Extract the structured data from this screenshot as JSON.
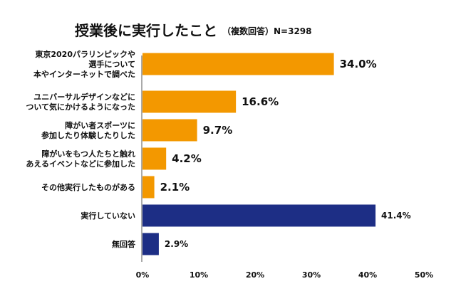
{
  "chart_data": {
    "type": "bar",
    "orientation": "horizontal",
    "title": "授業後に実行したこと",
    "subtitle": "（複数回答）N=3298",
    "categories": [
      [
        "東京2020パラリンピックや",
        "選手について",
        "本やインターネットで調べた"
      ],
      [
        "ユニバーサルデザインなどに",
        "ついて気にかけるようになった"
      ],
      [
        "障がい者スポーツに",
        "参加したり体験したりした"
      ],
      [
        "障がいをもつ人たちと触れ",
        "あえるイベントなどに参加した"
      ],
      [
        "その他実行したものがある"
      ],
      [
        "実行していない"
      ],
      [
        "無回答"
      ]
    ],
    "values": [
      34.0,
      16.6,
      9.7,
      4.2,
      2.1,
      41.4,
      2.9
    ],
    "value_labels": [
      "34.0%",
      "16.6%",
      "9.7%",
      "4.2%",
      "2.1%",
      "41.4%",
      "2.9%"
    ],
    "bar_colors": [
      "#f39800",
      "#f39800",
      "#f39800",
      "#f39800",
      "#f39800",
      "#1d2e85",
      "#1d2e85"
    ],
    "xlim": [
      0,
      50
    ],
    "xticks": [
      "0%",
      "10%",
      "20%",
      "30%",
      "40%",
      "50%"
    ],
    "grid": false,
    "legend": "none"
  }
}
